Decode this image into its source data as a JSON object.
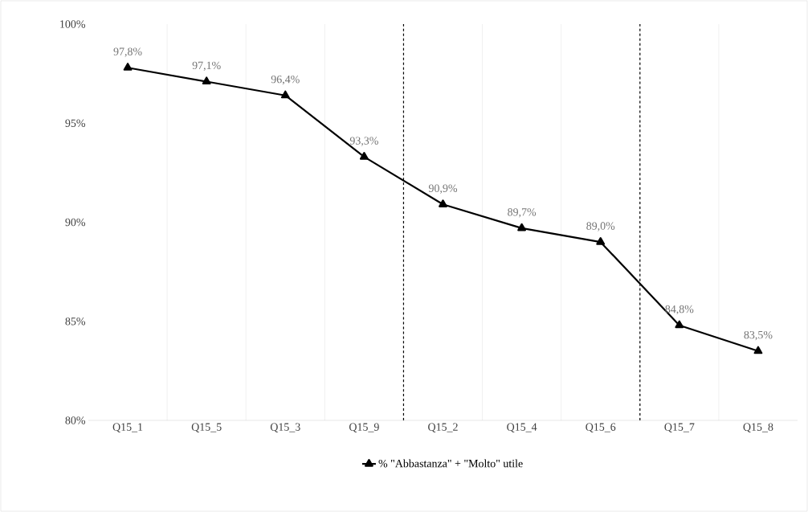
{
  "chart_data": {
    "type": "line",
    "categories": [
      "Q15_1",
      "Q15_5",
      "Q15_3",
      "Q15_9",
      "Q15_2",
      "Q15_4",
      "Q15_6",
      "Q15_7",
      "Q15_8"
    ],
    "series": [
      {
        "name": "% \"Abbastanza\" + \"Molto\" utile",
        "color": "#000000",
        "values": [
          97.8,
          97.1,
          96.4,
          93.3,
          90.9,
          89.7,
          89.0,
          84.8,
          83.5
        ],
        "value_labels": [
          "97,8%",
          "97,1%",
          "96,4%",
          "93,3%",
          "90,9%",
          "89,7%",
          "89,0%",
          "84,8%",
          "83,5%"
        ]
      }
    ],
    "ylim": [
      80,
      100
    ],
    "yticks": [
      {
        "value": 80,
        "label": "80%"
      },
      {
        "value": 85,
        "label": "85%"
      },
      {
        "value": 90,
        "label": "90%"
      },
      {
        "value": 95,
        "label": "95%"
      },
      {
        "value": 100,
        "label": "100%"
      }
    ],
    "grid": "x",
    "legend": "bottom",
    "marker": "triangle",
    "line_style": "solid"
  }
}
